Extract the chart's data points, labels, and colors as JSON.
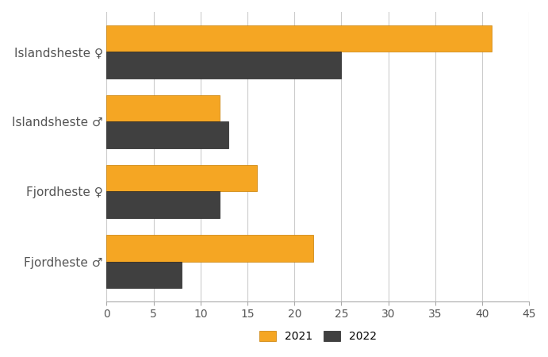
{
  "categories": [
    "Islandsheste ♀",
    "Islandsheste ♂",
    "Fjordheste ♀",
    "Fjordheste ♂"
  ],
  "values_2021": [
    41,
    12,
    16,
    22
  ],
  "values_2022": [
    25,
    13,
    12,
    8
  ],
  "color_2021": "#F5A623",
  "color_2022": "#404040",
  "xlim": [
    0,
    45
  ],
  "xticks": [
    0,
    5,
    10,
    15,
    20,
    25,
    30,
    35,
    40,
    45
  ],
  "legend_labels": [
    "2021",
    "2022"
  ],
  "bar_height": 0.38,
  "background_color": "#FFFFFF",
  "grid_color": "#CCCCCC"
}
